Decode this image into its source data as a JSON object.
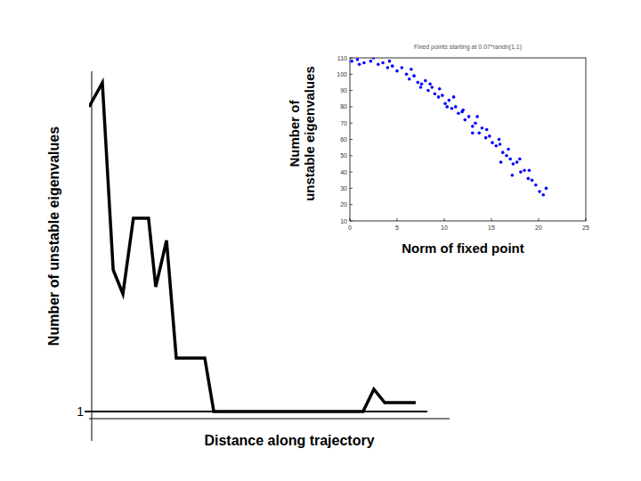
{
  "chart_data": [
    {
      "type": "line",
      "xlabel": "Distance along trajectory",
      "ylabel": "Number of unstable eigenvalues",
      "x": [
        0,
        3.7,
        6.7,
        9.4,
        12.3,
        16.5,
        18.5,
        21.5,
        24.2,
        32.1,
        34.6,
        76.0,
        79.0,
        82.0,
        90.6
      ],
      "series": [
        {
          "color": "#000000",
          "values": [
            35.2,
            37.9,
            16.9,
            14.2,
            22.7,
            22.7,
            15.0,
            20.2,
            7.0,
            7.0,
            1.0,
            1.0,
            3.5,
            2.0,
            2.0
          ]
        }
      ],
      "xlim": [
        0,
        100
      ],
      "ylim": [
        0.2,
        39.2
      ],
      "yticks": [
        1
      ],
      "grid": true,
      "tick_labels": "y"
    },
    {
      "type": "scatter",
      "title": "Fixed points starting at 0.07*randn(1,1)",
      "xlabel": "Norm of fixed point",
      "ylabel": "Number of\nunstable eigenvalues",
      "x": [
        0.2,
        0.8,
        1.5,
        2.2,
        3.0,
        3.5,
        4.0,
        4.5,
        5.0,
        5.5,
        6.0,
        6.3,
        6.8,
        7.2,
        7.6,
        8.0,
        8.3,
        8.7,
        9.0,
        9.4,
        9.8,
        10.1,
        10.5,
        10.8,
        11.2,
        11.5,
        11.9,
        12.2,
        12.6,
        13.0,
        13.3,
        13.7,
        14.0,
        14.4,
        14.8,
        15.1,
        15.5,
        15.9,
        16.2,
        16.6,
        17.0,
        17.3,
        17.7,
        18.1,
        18.5,
        18.9,
        19.3,
        19.7,
        20.1,
        20.5,
        1.0,
        2.5,
        4.2,
        6.5,
        8.5,
        9.5,
        11.0,
        12.0,
        13.5,
        14.5,
        15.8,
        16.8,
        18.0,
        19.0,
        17.2,
        13.0,
        10.3,
        7.5,
        20.8,
        16.0
      ],
      "series": [
        {
          "color": "#0000ff",
          "marker": "circle",
          "values": [
            108,
            109,
            107,
            108,
            106,
            107,
            104,
            105,
            102,
            104,
            100,
            97,
            99,
            95,
            94,
            96,
            90,
            92,
            88,
            86,
            87,
            82,
            84,
            79,
            80,
            76,
            77,
            72,
            74,
            68,
            70,
            64,
            67,
            61,
            62,
            58,
            56,
            57,
            52,
            50,
            48,
            45,
            46,
            40,
            41,
            36,
            35,
            32,
            28,
            26,
            106,
            110,
            108,
            103,
            94,
            91,
            86,
            78,
            74,
            66,
            60,
            54,
            48,
            41,
            38,
            64,
            80,
            92,
            30,
            46
          ]
        }
      ],
      "xlim": [
        0,
        25
      ],
      "ylim": [
        10,
        110
      ],
      "xticks": [
        0,
        5,
        10,
        15,
        20,
        25
      ],
      "yticks": [
        10,
        20,
        30,
        40,
        50,
        60,
        70,
        80,
        90,
        100,
        110
      ]
    }
  ]
}
